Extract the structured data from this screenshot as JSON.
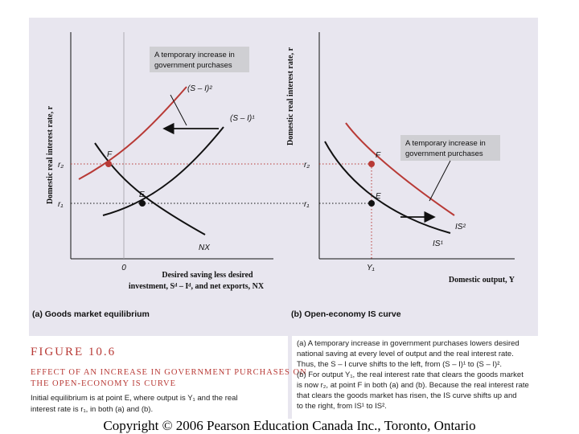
{
  "panel_a": {
    "y_axis_title": "Domestic real interest rate, r",
    "x_axis_title_line1": "Desired saving less desired",
    "x_axis_title_line2": "investment, Sᵈ – Iᵈ, and net exports, NX",
    "zero_label": "0",
    "r2_label": "r₂",
    "r1_label": "r₁",
    "point_f": "F",
    "point_e": "E",
    "curve_nx": "NX",
    "curve_si1": "(S – I)¹",
    "curve_si2": "(S – I)²",
    "note_line1": "A temporary increase in",
    "note_line2": "government purchases",
    "caption_prefix": "(a)",
    "caption": "Goods market equilibrium"
  },
  "panel_b": {
    "y_axis_title": "Domestic real interest rate, r",
    "x_axis_title": "Domestic output, Y",
    "r2_label": "r₂",
    "r1_label": "r₁",
    "y1_label": "Y₁",
    "point_f": "F",
    "point_e": "E",
    "curve_is1": "IS¹",
    "curve_is2": "IS²",
    "note_line1": "A temporary increase in",
    "note_line2": "government purchases",
    "caption_prefix": "(b)",
    "caption": "Open-economy IS curve"
  },
  "figure": {
    "number": "Figure 10.6",
    "subtitle_line1": "Effect of an increase in government purchases on",
    "subtitle_line2": "the open-economy IS curve",
    "description_lines": [
      "Initial equilibrium is at point E, where output is Y₁ and the real",
      "interest rate is r₁, in both (a) and (b)."
    ]
  },
  "explanation": {
    "lines": [
      "(a) A temporary increase in government purchases lowers desired",
      "national saving at every level of output and the real interest rate.",
      "Thus, the S – I curve shifts to the left, from (S – I)¹ to (S – I)².",
      "(b) For output Y₁, the real interest rate that clears the goods market",
      "is now r₂, at point F in both (a) and (b). Because the real interest rate",
      "that clears the goods market has risen, the IS curve shifts up and",
      "to the right, from IS¹ to IS²."
    ]
  },
  "copyright": "Copyright © 2006 Pearson Education Canada Inc., Toronto, Ontario",
  "colors": {
    "panel_bg": "#e8e6ef",
    "page_bg": "#ffffff",
    "curve_old": "#111111",
    "curve_new": "#b83a36",
    "note_bg": "#cfcfd3",
    "grid_dotted": "#b83a36"
  }
}
